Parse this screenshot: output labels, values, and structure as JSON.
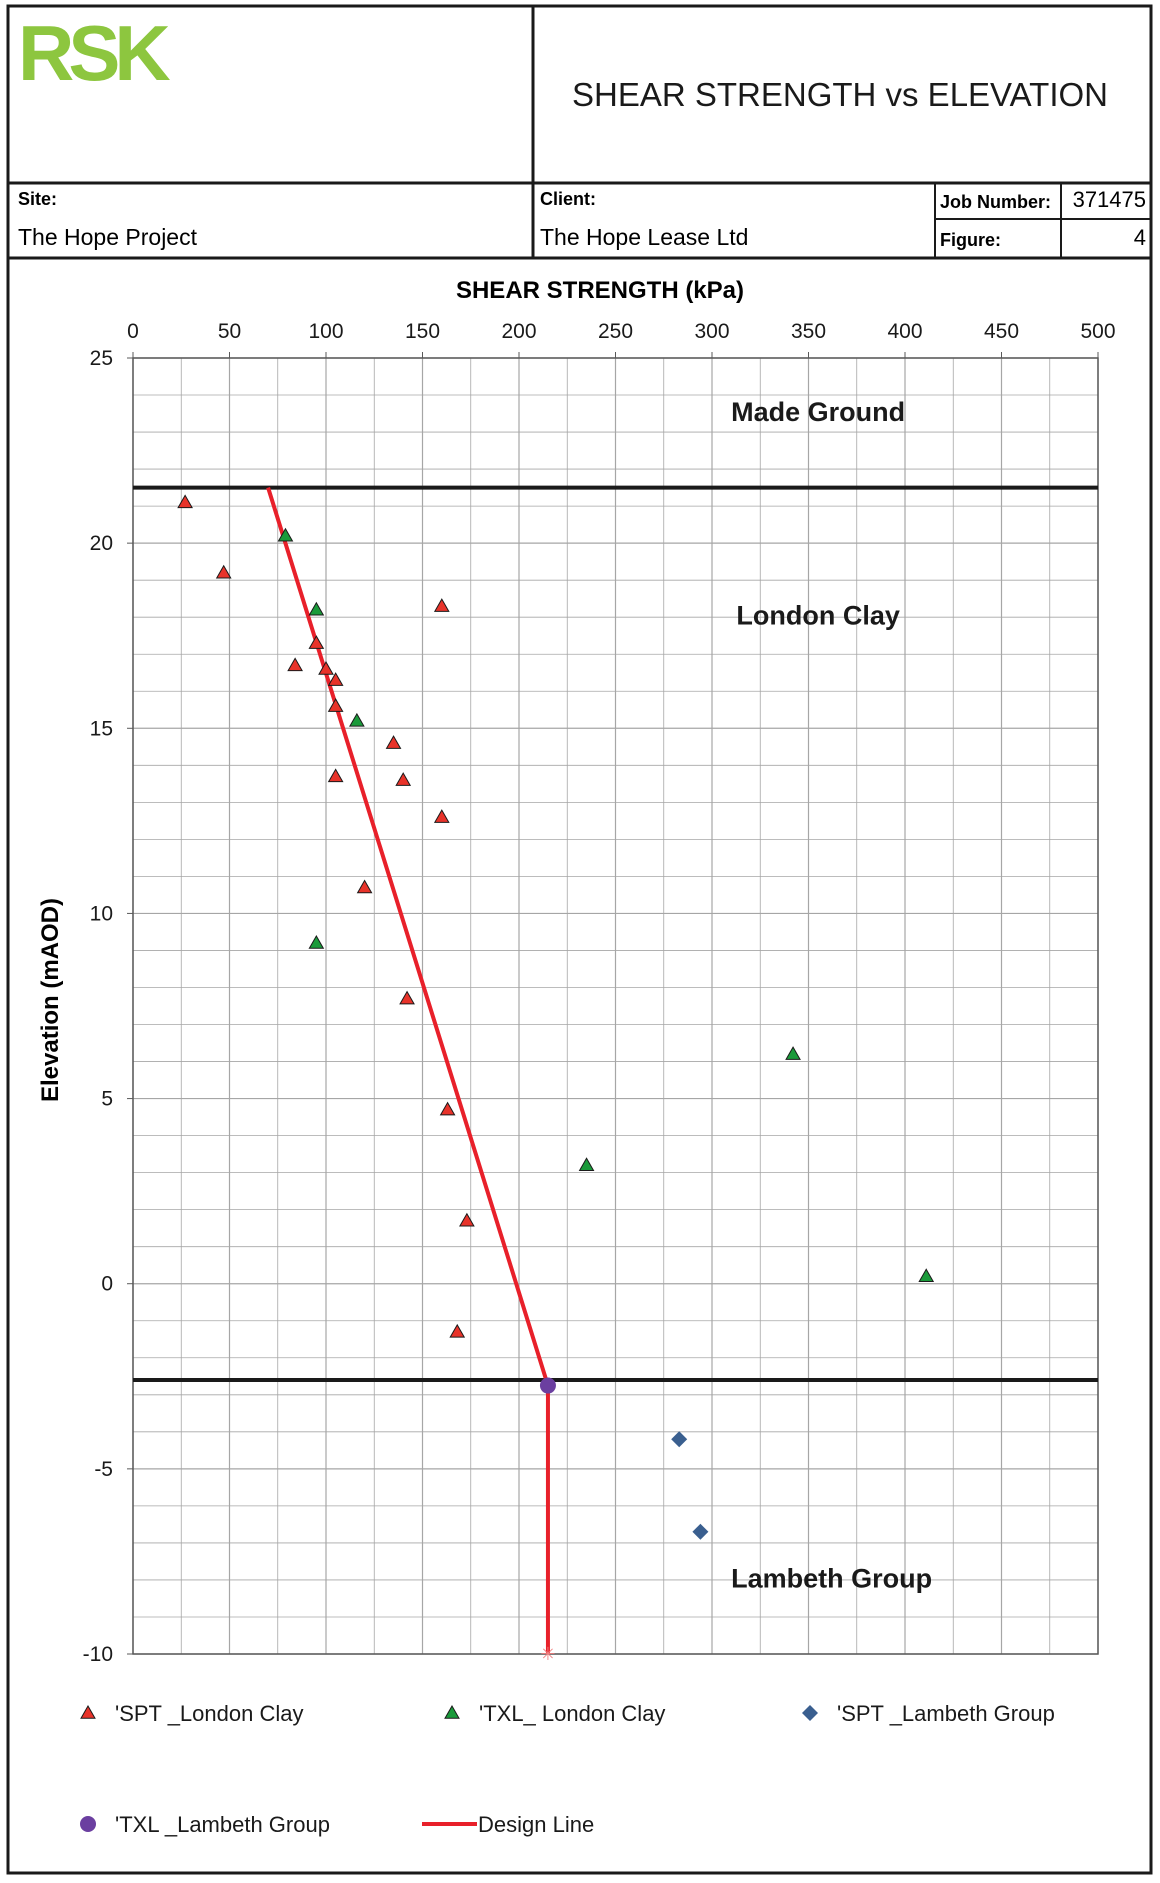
{
  "header": {
    "logo_text": "RSK",
    "report_title": "SHEAR STRENGTH vs ELEVATION",
    "site_label": "Site:",
    "site_value": "The Hope Project",
    "client_label": "Client:",
    "client_value": "The Hope Lease Ltd",
    "job_number_label": "Job Number:",
    "job_number_value": "371475",
    "figure_label": "Figure:",
    "figure_value": "4"
  },
  "colors": {
    "spt_london_clay": "#e8332a",
    "txl_london_clay": "#1a9a3a",
    "spt_lambeth_group": "#3a5f8f",
    "txl_lambeth_group": "#6b3fa0",
    "design_line": "#e8202a",
    "boundary_line": "#1a1a1a",
    "grid": "#a6a6a6",
    "logo": "#8dc63f"
  },
  "chart_data": {
    "type": "scatter",
    "title": "",
    "xlabel": "SHEAR STRENGTH (kPa)",
    "ylabel": "Elevation (mAOD)",
    "xlim": [
      0,
      500
    ],
    "ylim": [
      -10,
      25
    ],
    "x_axis_position": "top",
    "x_ticks": [
      0,
      50,
      100,
      150,
      200,
      250,
      300,
      350,
      400,
      450,
      500
    ],
    "y_ticks": [
      25,
      20,
      15,
      10,
      5,
      0,
      -5,
      -10
    ],
    "grid": true,
    "legend_position": "bottom",
    "boundaries": [
      21.5,
      -2.6
    ],
    "annotations": [
      {
        "text": "Made Ground",
        "x": 355,
        "y": 23.3
      },
      {
        "text": "London Clay",
        "x": 355,
        "y": 17.8
      },
      {
        "text": "Lambeth Group",
        "x": 362,
        "y": -8.2
      }
    ],
    "series": [
      {
        "name": "'SPT _London Clay",
        "marker": "triangle",
        "color_key": "spt_london_clay",
        "points": [
          [
            27,
            21.1
          ],
          [
            47,
            19.2
          ],
          [
            160,
            18.3
          ],
          [
            95,
            17.3
          ],
          [
            84,
            16.7
          ],
          [
            100,
            16.6
          ],
          [
            105,
            16.3
          ],
          [
            105,
            15.6
          ],
          [
            135,
            14.6
          ],
          [
            105,
            13.7
          ],
          [
            140,
            13.6
          ],
          [
            160,
            12.6
          ],
          [
            120,
            10.7
          ],
          [
            142,
            7.7
          ],
          [
            163,
            4.7
          ],
          [
            173,
            1.7
          ],
          [
            168,
            -1.3
          ]
        ]
      },
      {
        "name": "'TXL_ London Clay",
        "marker": "triangle",
        "color_key": "txl_london_clay",
        "points": [
          [
            79,
            20.2
          ],
          [
            95,
            18.2
          ],
          [
            116,
            15.2
          ],
          [
            95,
            9.2
          ],
          [
            342,
            6.2
          ],
          [
            235,
            3.2
          ],
          [
            411,
            0.2
          ]
        ]
      },
      {
        "name": "'SPT _Lambeth Group",
        "marker": "diamond",
        "color_key": "spt_lambeth_group",
        "points": [
          [
            283,
            -4.2
          ],
          [
            294,
            -6.7
          ]
        ]
      },
      {
        "name": "'TXL _Lambeth Group",
        "marker": "circle",
        "color_key": "txl_lambeth_group",
        "points": [
          [
            215,
            -2.75
          ]
        ]
      },
      {
        "name": "Design Line",
        "marker": "line",
        "color_key": "design_line",
        "points": [
          [
            70,
            21.5
          ],
          [
            215,
            -2.75
          ],
          [
            215,
            -10
          ]
        ]
      }
    ]
  }
}
